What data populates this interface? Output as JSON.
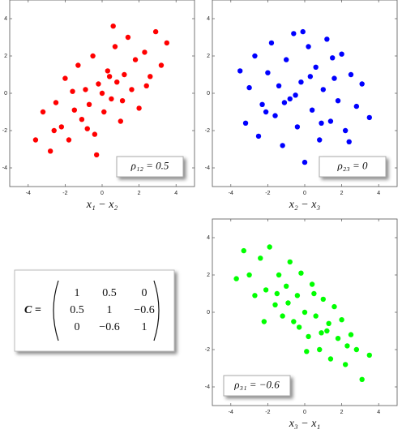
{
  "chart_data": [
    {
      "type": "scatter",
      "xlabel": "x₁ − x₂",
      "annotation": "ρ₁₂ = 0.5",
      "annotation_corner": "lower right",
      "color": "#ff0000",
      "xlim": [
        -5,
        5
      ],
      "ylim": [
        -5,
        5
      ],
      "xticks": [
        -4,
        -2,
        0,
        2,
        4
      ],
      "yticks": [
        -4,
        -2,
        0,
        2,
        4
      ],
      "x": [
        -3.6,
        -3.2,
        -2.8,
        -2.5,
        -2.2,
        -2.0,
        -1.8,
        -1.5,
        -1.3,
        -1.1,
        -0.9,
        -0.7,
        -0.5,
        -0.4,
        -0.2,
        0,
        0.1,
        0.3,
        0.5,
        0.7,
        0.8,
        1.0,
        1.2,
        1.4,
        1.6,
        1.8,
        2.0,
        2.3,
        2.6,
        2.9,
        3.2,
        3.5,
        -0.3,
        0.6,
        -1.6,
        1.1,
        -0.8,
        0.4,
        -2.6,
        2.4
      ],
      "values": [
        -2.5,
        -1.0,
        -3.1,
        -0.5,
        -1.8,
        0.8,
        -2.5,
        -0.9,
        1.5,
        -1.4,
        0.2,
        -0.6,
        2.0,
        -2.2,
        0.5,
        0,
        -1.0,
        1.2,
        -0.3,
        2.5,
        0.6,
        -1.5,
        1.0,
        3.0,
        0.2,
        1.8,
        -0.8,
        2.2,
        0.9,
        3.3,
        1.5,
        2.7,
        -3.3,
        3.6,
        0.1,
        -0.4,
        -1.9,
        0.9,
        -2.0,
        0.4
      ]
    },
    {
      "type": "scatter",
      "xlabel": "x₂ − x₃",
      "annotation": "ρ₂₃ = 0",
      "annotation_corner": "lower right",
      "color": "#0000ff",
      "xlim": [
        -5,
        5
      ],
      "ylim": [
        -5,
        5
      ],
      "xticks": [
        -4,
        -2,
        0,
        2,
        4
      ],
      "yticks": [
        -4,
        -2,
        0,
        2,
        4
      ],
      "x": [
        -3.5,
        -3.2,
        -3.0,
        -2.7,
        -2.5,
        -2.3,
        -2.0,
        -1.8,
        -1.6,
        -1.4,
        -1.2,
        -1.0,
        -0.8,
        -0.6,
        -0.4,
        -0.2,
        0,
        0.2,
        0.4,
        0.6,
        0.8,
        1.0,
        1.2,
        1.4,
        1.6,
        1.8,
        2.0,
        2.2,
        2.5,
        2.8,
        3.1,
        3.5,
        -0.5,
        0.3,
        -1.1,
        1.5,
        -2.1,
        2.4,
        0.9,
        -0.1
      ],
      "values": [
        1.2,
        -1.6,
        0.3,
        2.0,
        -2.3,
        -0.6,
        1.1,
        2.7,
        -1.2,
        0.4,
        -2.8,
        1.8,
        -0.3,
        3.2,
        -1.8,
        0.6,
        -3.7,
        2.5,
        -0.9,
        1.4,
        -2.5,
        0.2,
        2.9,
        -1.5,
        0.8,
        -0.4,
        2.1,
        -2.0,
        1.0,
        -0.7,
        0.5,
        -1.3,
        -0.1,
        0.9,
        -0.5,
        1.9,
        -1.0,
        -2.6,
        -1.6,
        3.3
      ]
    },
    {
      "type": "scatter",
      "xlabel": "x₃ − x₁",
      "annotation": "ρ₃₁ = −0.6",
      "annotation_corner": "lower left",
      "color": "#00ff00",
      "xlim": [
        -5,
        5
      ],
      "ylim": [
        -5,
        5
      ],
      "xticks": [
        -4,
        -2,
        0,
        2,
        4
      ],
      "yticks": [
        -4,
        -2,
        0,
        2,
        4
      ],
      "x": [
        -3.7,
        -3.3,
        -3.0,
        -2.7,
        -2.4,
        -2.1,
        -1.9,
        -1.6,
        -1.4,
        -1.2,
        -1.0,
        -0.8,
        -0.6,
        -0.4,
        -0.2,
        0,
        0.2,
        0.4,
        0.6,
        0.8,
        1.0,
        1.2,
        1.4,
        1.6,
        1.8,
        2.0,
        2.2,
        2.5,
        2.8,
        3.1,
        3.5,
        -0.3,
        0.5,
        -1.5,
        1.3,
        -2.2,
        2.3,
        0.9,
        -0.9,
        0.1
      ],
      "values": [
        1.8,
        3.3,
        2.0,
        0.9,
        2.9,
        1.2,
        3.5,
        0.4,
        2.0,
        -0.2,
        1.4,
        2.7,
        -0.5,
        0.9,
        2.1,
        0,
        -1.3,
        1.5,
        -0.2,
        -2.0,
        0.7,
        -1.0,
        -2.5,
        0.3,
        -1.4,
        -0.4,
        -2.8,
        -1.2,
        -2.0,
        -3.6,
        -2.3,
        -0.8,
        1.0,
        1.0,
        -0.6,
        -0.5,
        -1.8,
        -1.1,
        0.5,
        -2.1
      ]
    }
  ],
  "matrix": {
    "label": "C =",
    "rows": [
      [
        "1",
        "0.5",
        "0"
      ],
      [
        "0.5",
        "1",
        "−0.6"
      ],
      [
        "0",
        "−0.6",
        "1"
      ]
    ]
  }
}
